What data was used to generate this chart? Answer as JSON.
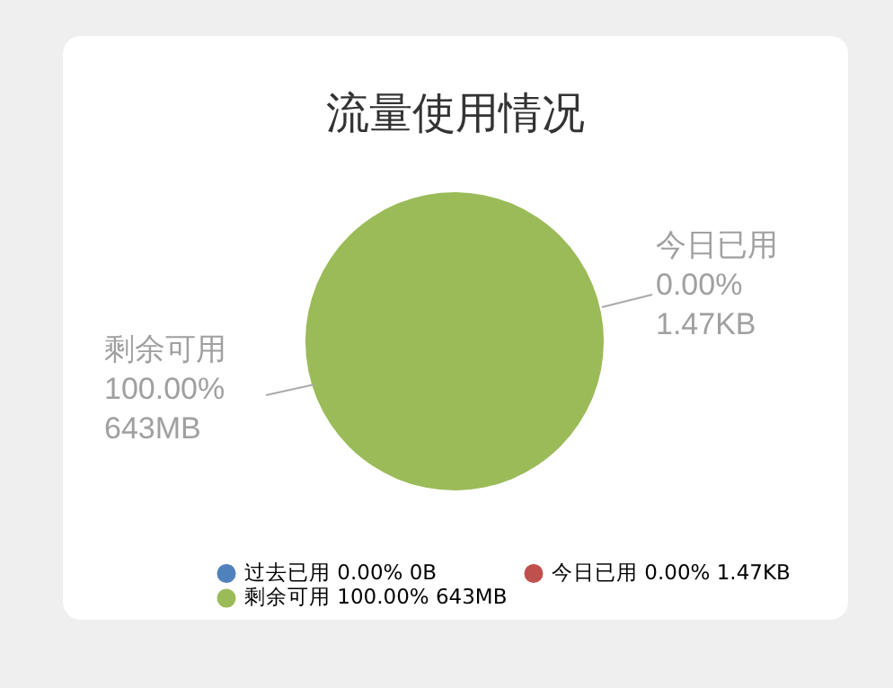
{
  "chart_data": {
    "type": "pie",
    "title": "流量使用情况",
    "categories": [
      "过去已用",
      "今日已用",
      "剩余可用"
    ],
    "values": [
      0,
      0,
      100
    ],
    "value_labels": [
      "0.00% 0B",
      "0.00% 1.47KB",
      "100.00% 643MB"
    ],
    "colors": [
      "#4f81bc",
      "#c0504e",
      "#9bbb58"
    ],
    "legend": "bottom"
  }
}
